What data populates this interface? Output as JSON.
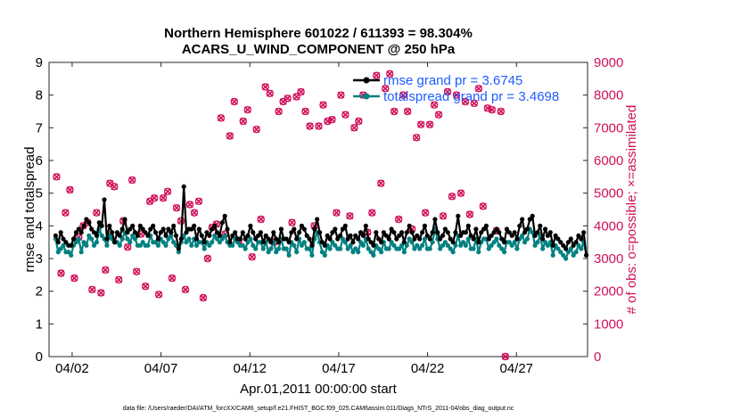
{
  "chart_data": {
    "type": "line",
    "title": "Northern Hemisphere 601022 / 611393 = 98.304%",
    "subtitle": "ACARS_U_WIND_COMPONENT @ 250 hPa",
    "xlabel": "Apr.01,2011 00:00:00 start",
    "ylabel": "rmse and totalspread",
    "y2label": "# of obs: o=possible; ×=assimilated",
    "footnote": "data file: /Users/raeder/DAI/ATM_forcXX/CAM6_setup/f.e21.FHIST_BGC.f09_025.CAM6assim.011/Diags_NTrS_2011-04/obs_diag_output.nc",
    "x_ticks": [
      2,
      7,
      12,
      17,
      22,
      27
    ],
    "x_tick_labels": [
      "04/02",
      "04/07",
      "04/12",
      "04/17",
      "04/22",
      "04/27"
    ],
    "xlim": [
      0.7,
      31.0
    ],
    "ylim": [
      0,
      9
    ],
    "y_ticks": [
      0,
      1,
      2,
      3,
      4,
      5,
      6,
      7,
      8,
      9
    ],
    "y2lim": [
      0,
      9000
    ],
    "y2_ticks": [
      0,
      1000,
      2000,
      3000,
      4000,
      5000,
      6000,
      7000,
      8000,
      9000
    ],
    "legend": [
      "rmse grand pr = 3.6745",
      "totalspread grand pr = 3.4698"
    ],
    "legend_position": "top-right",
    "colors": {
      "rmse": "#000000",
      "spread": "#008080",
      "obs": "#d0105a",
      "legend_text": "#1f5cff"
    },
    "series": [
      {
        "name": "rmse",
        "axis": "left",
        "values": [
          3.7,
          3.5,
          3.8,
          3.6,
          3.5,
          3.4,
          3.4,
          3.6,
          3.8,
          3.9,
          3.8,
          4.0,
          4.2,
          4.1,
          3.9,
          3.8,
          3.7,
          4.1,
          4.0,
          4.8,
          3.6,
          4.0,
          3.8,
          3.5,
          3.8,
          3.7,
          3.9,
          4.2,
          3.8,
          3.9,
          4.0,
          3.8,
          3.7,
          4.0,
          3.9,
          3.8,
          3.7,
          3.9,
          4.0,
          3.8,
          3.6,
          3.8,
          3.9,
          3.7,
          3.9,
          3.8,
          4.0,
          3.7,
          3.3,
          3.6,
          5.2,
          3.8,
          3.9,
          3.9,
          4.0,
          3.6,
          3.9,
          3.7,
          3.5,
          3.8,
          3.7,
          3.9,
          4.0,
          3.8,
          3.7,
          4.1,
          4.3,
          3.9,
          3.5,
          3.7,
          3.8,
          3.6,
          3.6,
          3.8,
          3.6,
          3.7,
          4.0,
          3.8,
          3.6,
          3.7,
          3.8,
          3.5,
          3.7,
          3.6,
          3.5,
          3.8,
          3.6,
          3.5,
          3.9,
          3.6,
          3.6,
          3.5,
          3.8,
          3.9,
          3.6,
          3.8,
          4.0,
          3.9,
          3.7,
          3.6,
          3.4,
          3.9,
          4.2,
          3.8,
          3.5,
          3.4,
          3.7,
          3.6,
          3.8,
          3.9,
          3.6,
          3.7,
          3.9,
          4.0,
          3.6,
          3.7,
          3.5,
          3.7,
          3.6,
          3.8,
          3.7,
          4.0,
          3.6,
          3.5,
          3.4,
          3.8,
          3.6,
          3.5,
          3.8,
          3.7,
          3.6,
          3.9,
          3.8,
          3.6,
          3.7,
          3.8,
          3.5,
          3.8,
          4.0,
          3.8,
          3.6,
          3.7,
          3.6,
          3.8,
          4.0,
          3.7,
          3.6,
          3.8,
          4.2,
          3.8,
          3.6,
          3.7,
          3.9,
          3.8,
          3.6,
          3.5,
          3.8,
          4.3,
          3.7,
          3.8,
          3.8,
          4.0,
          3.7,
          3.6,
          3.9,
          3.5,
          3.8,
          3.9,
          4.0,
          3.6,
          3.7,
          3.8,
          3.9,
          3.8,
          3.6,
          3.5,
          3.9,
          3.8,
          3.7,
          3.8,
          3.6,
          4.0,
          4.2,
          3.8,
          3.9,
          4.2,
          4.3,
          3.7,
          3.8,
          4.0,
          3.6,
          3.9,
          3.7,
          3.8,
          3.4,
          3.7,
          3.6,
          3.5,
          3.4,
          3.3,
          3.5,
          3.6,
          3.4,
          3.5,
          3.7,
          3.6,
          3.8,
          3.1
        ]
      },
      {
        "name": "totalspread",
        "axis": "left",
        "values": [
          3.6,
          3.2,
          3.3,
          3.4,
          3.2,
          3.2,
          3.1,
          3.4,
          3.5,
          3.6,
          3.2,
          3.5,
          3.4,
          3.7,
          3.6,
          3.4,
          3.5,
          3.9,
          3.7,
          3.6,
          3.4,
          3.7,
          3.6,
          3.5,
          3.5,
          3.4,
          3.6,
          3.8,
          3.6,
          3.5,
          3.7,
          3.6,
          3.4,
          3.4,
          3.5,
          3.4,
          3.4,
          3.7,
          3.5,
          3.5,
          3.4,
          3.6,
          3.5,
          3.4,
          3.6,
          3.7,
          3.5,
          3.4,
          3.2,
          3.5,
          3.7,
          3.5,
          3.6,
          3.4,
          3.6,
          3.4,
          3.5,
          3.5,
          3.3,
          3.5,
          3.4,
          3.5,
          3.7,
          3.6,
          3.5,
          3.6,
          3.7,
          3.5,
          3.4,
          3.4,
          3.6,
          3.5,
          3.4,
          3.4,
          3.3,
          3.5,
          3.6,
          3.4,
          3.3,
          3.5,
          3.5,
          3.3,
          3.5,
          3.2,
          3.3,
          3.5,
          3.2,
          3.3,
          3.6,
          3.3,
          3.3,
          3.1,
          3.5,
          3.4,
          3.2,
          3.6,
          3.4,
          3.5,
          3.3,
          3.3,
          3.1,
          3.6,
          3.8,
          3.5,
          3.2,
          3.1,
          3.4,
          3.3,
          3.5,
          3.4,
          3.3,
          3.3,
          3.6,
          3.5,
          3.3,
          3.4,
          3.2,
          3.3,
          3.2,
          3.5,
          3.4,
          3.6,
          3.3,
          3.2,
          3.1,
          3.4,
          3.3,
          3.2,
          3.5,
          3.3,
          3.3,
          3.5,
          3.4,
          3.3,
          3.3,
          3.4,
          3.2,
          3.4,
          3.6,
          3.5,
          3.3,
          3.4,
          3.3,
          3.4,
          3.6,
          3.3,
          3.3,
          3.5,
          3.9,
          3.6,
          3.3,
          3.4,
          3.5,
          3.4,
          3.3,
          3.2,
          3.4,
          3.7,
          3.4,
          3.5,
          3.4,
          3.6,
          3.3,
          3.3,
          3.6,
          3.2,
          3.5,
          3.6,
          3.6,
          3.3,
          3.4,
          3.5,
          3.6,
          3.4,
          3.3,
          3.2,
          3.5,
          3.5,
          3.4,
          3.5,
          3.3,
          3.6,
          3.7,
          3.5,
          3.6,
          3.9,
          3.8,
          3.4,
          3.5,
          3.7,
          3.3,
          3.5,
          3.4,
          3.5,
          3.1,
          3.4,
          3.3,
          3.2,
          3.1,
          3.0,
          3.2,
          3.3,
          3.1,
          3.2,
          3.4,
          3.3,
          3.5,
          3.1
        ]
      }
    ],
    "obs_every_6h": [
      5500,
      2550,
      4400,
      5100,
      2400,
      3650,
      4000,
      4100,
      2050,
      4400,
      1950,
      2650,
      5300,
      5200,
      2350,
      4150,
      3350,
      5400,
      2600,
      3750,
      2150,
      4750,
      4850,
      1900,
      4850,
      5050,
      2400,
      4550,
      4150,
      2050,
      4650,
      4400,
      4750,
      1800,
      3000,
      3950,
      4050,
      7300,
      3750,
      6750,
      7800,
      3550,
      7200,
      7550,
      3050,
      6950,
      4200,
      8250,
      8050,
      3500,
      7500,
      7800,
      7900,
      4100,
      7950,
      8100,
      7500,
      7050,
      4000,
      7050,
      7700,
      7200,
      7250,
      4400,
      8000,
      7400,
      4300,
      7000,
      7200,
      8000,
      3800,
      4400,
      8600,
      5300,
      8200,
      8650,
      7500,
      4200,
      8000,
      7500,
      3900,
      6700,
      7100,
      4400,
      7100,
      7700,
      7400,
      4300,
      8100,
      4900,
      8000,
      5000,
      7800,
      4350,
      7750,
      8200,
      4600,
      7600,
      7550,
      3850,
      7500,
      0
    ]
  }
}
